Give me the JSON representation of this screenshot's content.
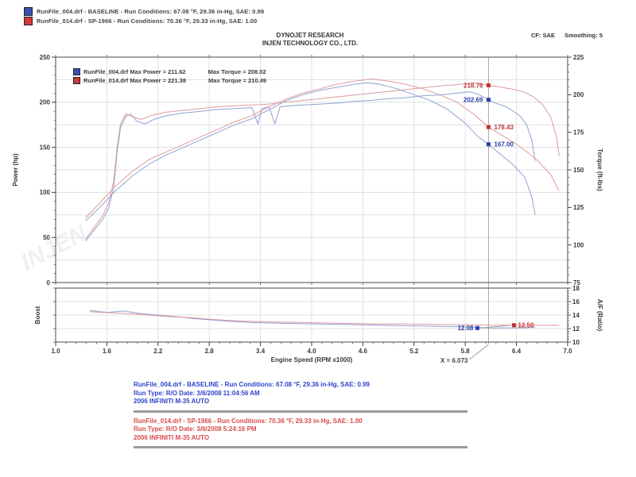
{
  "watermark": "INJEN",
  "colors": {
    "baseline": "#3a50b0",
    "sp": "#cf3a3a",
    "grid": "#e0e0e0",
    "frame": "#666666",
    "cursor": "#999999"
  },
  "header": {
    "runs": [
      {
        "swatch_color": "#3a50b0",
        "label": "RunFile_004.drf - BASELINE  -  Run Conditions: 67.08 °F, 29.36 in-Hg, SAE: 0.99"
      },
      {
        "swatch_color": "#cf3a3a",
        "label": "RunFile_014.drf - SP-1966  -  Run Conditions: 70.36 °F, 29.33 in-Hg, SAE: 1.00"
      }
    ],
    "cf_label": "CF: SAE",
    "smoothing_label": "Smoothing: 5",
    "title1": "DYNOJET RESEARCH",
    "title2": "INJEN TECHNOLOGY CO., LTD."
  },
  "legend": {
    "rows": [
      {
        "swatch_color": "#3a50b0",
        "power_label": "RunFile_004.drf Max Power = 211.62",
        "torque_label": "Max Torque = 208.02"
      },
      {
        "swatch_color": "#cf3a3a",
        "power_label": "RunFile_014.drf Max Power = 221.38",
        "torque_label": "Max Torque = 210.49"
      }
    ]
  },
  "footer": {
    "blocks": [
      {
        "color": "blue",
        "lines": [
          "RunFile_004.drf - BASELINE  -  Run Conditions: 67.08 °F, 29.36 in-Hg, SAE: 0.99",
          "Run Type: R/O Date: 3/6/2008 11:04:56 AM",
          "2006 INFINITI M-35 AUTO"
        ]
      },
      {
        "color": "red",
        "lines": [
          "RunFile_014.drf - SP-1966  -  Run Conditions: 70.36 °F, 29.33 in-Hg, SAE: 1.00",
          "Run Type: R/O Date: 3/6/2008 5:24:16 PM",
          "2006 INFINITI M-35 AUTO"
        ]
      }
    ]
  },
  "chart_data": [
    {
      "type": "line",
      "xlabel": "Engine Speed (RPM x1000)",
      "x_range": [
        1.0,
        7.0
      ],
      "x_ticks": [
        "1.0",
        "1.6",
        "2.2",
        "2.8",
        "3.4",
        "4.0",
        "4.6",
        "5.2",
        "5.8",
        "6.4",
        "7.0"
      ],
      "left_axis": {
        "label": "Power (hp)",
        "range": [
          0,
          250
        ],
        "ticks": [
          250,
          200,
          150,
          100,
          50,
          0
        ]
      },
      "right_axis": {
        "label": "Torque (ft-lbs)",
        "range": [
          75,
          225
        ],
        "ticks": [
          225,
          200,
          175,
          150,
          125,
          100,
          75
        ]
      },
      "grid": true,
      "cursor_x": 6.073,
      "cursor_label": "X = 6.073",
      "summary": {
        "baseline": {
          "max_power": 211.62,
          "max_torque": 208.02
        },
        "sp_1966": {
          "max_power": 221.38,
          "max_torque": 210.49
        }
      },
      "callouts": [
        {
          "text": "218.76",
          "value": 218.76,
          "axis": "left",
          "color": "#c03434",
          "label_side": "left"
        },
        {
          "text": "202.69",
          "value": 202.69,
          "axis": "left",
          "color": "#2b3fae",
          "label_side": "left"
        },
        {
          "text": "178.43",
          "value": 178.43,
          "axis": "right",
          "color": "#c03434",
          "label_side": "right"
        },
        {
          "text": "167.00",
          "value": 167.0,
          "axis": "right",
          "color": "#2b3fae",
          "label_side": "right"
        }
      ],
      "series": [
        {
          "id": "power-baseline",
          "name": "Power - RunFile_004.drf (BASELINE)",
          "axis": "left",
          "color": "#8fa2d4",
          "points": [
            [
              1.35,
              46
            ],
            [
              1.45,
              58
            ],
            [
              1.55,
              70
            ],
            [
              1.62,
              82
            ],
            [
              1.68,
              105
            ],
            [
              1.72,
              145
            ],
            [
              1.76,
              172
            ],
            [
              1.82,
              184
            ],
            [
              1.88,
              187
            ],
            [
              1.95,
              179
            ],
            [
              2.05,
              176
            ],
            [
              2.15,
              181
            ],
            [
              2.3,
              185
            ],
            [
              2.5,
              188
            ],
            [
              2.7,
              190
            ],
            [
              2.9,
              192
            ],
            [
              3.1,
              193
            ],
            [
              3.3,
              194
            ],
            [
              3.37,
              176
            ],
            [
              3.42,
              193
            ],
            [
              3.5,
              195
            ],
            [
              3.57,
              176
            ],
            [
              3.63,
              195
            ],
            [
              3.75,
              196
            ],
            [
              3.9,
              197
            ],
            [
              4.1,
              198
            ],
            [
              4.3,
              199
            ],
            [
              4.5,
              201
            ],
            [
              4.7,
              202
            ],
            [
              4.9,
              204
            ],
            [
              5.1,
              205
            ],
            [
              5.3,
              207
            ],
            [
              5.5,
              208
            ],
            [
              5.7,
              210
            ],
            [
              5.85,
              211.6
            ],
            [
              5.95,
              209
            ],
            [
              6.073,
              202.7
            ],
            [
              6.15,
              199
            ],
            [
              6.25,
              196
            ],
            [
              6.35,
              191
            ],
            [
              6.45,
              184
            ],
            [
              6.52,
              175
            ],
            [
              6.58,
              158
            ],
            [
              6.62,
              135
            ]
          ]
        },
        {
          "id": "power-sp1966",
          "name": "Power - RunFile_014.drf (SP-1966)",
          "axis": "left",
          "color": "#dd9a9a",
          "points": [
            [
              1.35,
              48
            ],
            [
              1.45,
              61
            ],
            [
              1.55,
              74
            ],
            [
              1.62,
              88
            ],
            [
              1.68,
              112
            ],
            [
              1.72,
              150
            ],
            [
              1.76,
              176
            ],
            [
              1.82,
              187
            ],
            [
              1.9,
              184
            ],
            [
              2.0,
              181
            ],
            [
              2.15,
              186
            ],
            [
              2.3,
              189
            ],
            [
              2.5,
              191
            ],
            [
              2.7,
              193
            ],
            [
              2.9,
              195
            ],
            [
              3.1,
              196
            ],
            [
              3.3,
              197
            ],
            [
              3.5,
              198
            ],
            [
              3.7,
              200
            ],
            [
              3.9,
              202
            ],
            [
              4.1,
              204
            ],
            [
              4.3,
              206
            ],
            [
              4.5,
              208
            ],
            [
              4.7,
              210
            ],
            [
              4.9,
              212
            ],
            [
              5.1,
              214
            ],
            [
              5.3,
              216
            ],
            [
              5.5,
              218
            ],
            [
              5.7,
              219.5
            ],
            [
              5.9,
              221.4
            ],
            [
              6.0,
              220
            ],
            [
              6.073,
              218.8
            ],
            [
              6.2,
              217
            ],
            [
              6.35,
              214.5
            ],
            [
              6.5,
              211
            ],
            [
              6.6,
              206
            ],
            [
              6.7,
              198
            ],
            [
              6.8,
              184
            ],
            [
              6.87,
              162
            ],
            [
              6.9,
              140
            ]
          ]
        },
        {
          "id": "torque-baseline",
          "name": "Torque - RunFile_004.drf (BASELINE)",
          "axis": "right",
          "color": "#8fa2d4",
          "points": [
            [
              1.35,
              116
            ],
            [
              1.5,
              124
            ],
            [
              1.7,
              136
            ],
            [
              1.9,
              146
            ],
            [
              2.1,
              154
            ],
            [
              2.3,
              160
            ],
            [
              2.5,
              165
            ],
            [
              2.7,
              170
            ],
            [
              2.9,
              175
            ],
            [
              3.1,
              180
            ],
            [
              3.3,
              184
            ],
            [
              3.5,
              190
            ],
            [
              3.7,
              196
            ],
            [
              3.9,
              200
            ],
            [
              4.1,
              203
            ],
            [
              4.3,
              205
            ],
            [
              4.5,
              207
            ],
            [
              4.65,
              208
            ],
            [
              4.8,
              207
            ],
            [
              5.0,
              204
            ],
            [
              5.2,
              200
            ],
            [
              5.4,
              196
            ],
            [
              5.6,
              190
            ],
            [
              5.8,
              181
            ],
            [
              5.95,
              172
            ],
            [
              6.073,
              167
            ],
            [
              6.2,
              161
            ],
            [
              6.35,
              154
            ],
            [
              6.5,
              145
            ],
            [
              6.58,
              132
            ],
            [
              6.62,
              120
            ]
          ]
        },
        {
          "id": "torque-sp1966",
          "name": "Torque - RunFile_014.drf (SP-1966)",
          "axis": "right",
          "color": "#dd9a9a",
          "points": [
            [
              1.35,
              118
            ],
            [
              1.5,
              127
            ],
            [
              1.7,
              139
            ],
            [
              1.9,
              149
            ],
            [
              2.1,
              157
            ],
            [
              2.3,
              162
            ],
            [
              2.5,
              167
            ],
            [
              2.7,
              172
            ],
            [
              2.9,
              177
            ],
            [
              3.1,
              182
            ],
            [
              3.3,
              186
            ],
            [
              3.5,
              192
            ],
            [
              3.7,
              197
            ],
            [
              3.9,
              201
            ],
            [
              4.1,
              204
            ],
            [
              4.3,
              207
            ],
            [
              4.5,
              209
            ],
            [
              4.7,
              210.5
            ],
            [
              4.9,
              209
            ],
            [
              5.1,
              207
            ],
            [
              5.3,
              204
            ],
            [
              5.5,
              200
            ],
            [
              5.7,
              195
            ],
            [
              5.9,
              187
            ],
            [
              6.0,
              182
            ],
            [
              6.073,
              178.4
            ],
            [
              6.2,
              174
            ],
            [
              6.35,
              169
            ],
            [
              6.5,
              163
            ],
            [
              6.65,
              156
            ],
            [
              6.8,
              147
            ],
            [
              6.9,
              136
            ]
          ]
        }
      ]
    },
    {
      "type": "line",
      "left_label": "Boost",
      "right_axis": {
        "label": "A/F (Ratio)",
        "range": [
          10,
          18
        ],
        "ticks": [
          18,
          16,
          14,
          12,
          10
        ]
      },
      "grid": true,
      "callouts": [
        {
          "text": "12.08",
          "value": 12.08,
          "color": "#2b3fae",
          "label_side": "left"
        },
        {
          "text": "12.50",
          "value": 12.5,
          "color": "#c03434",
          "label_side": "right"
        }
      ],
      "series": [
        {
          "id": "afr-baseline",
          "name": "A/F Ratio - RunFile_004.drf (BASELINE)",
          "color": "#8fa2d4",
          "points": [
            [
              1.4,
              14.7
            ],
            [
              1.6,
              14.4
            ],
            [
              1.8,
              14.6
            ],
            [
              2.0,
              14.2
            ],
            [
              2.2,
              14.0
            ],
            [
              2.4,
              13.8
            ],
            [
              2.6,
              13.5
            ],
            [
              2.8,
              13.3
            ],
            [
              3.0,
              13.1
            ],
            [
              3.3,
              12.9
            ],
            [
              3.6,
              12.8
            ],
            [
              4.0,
              12.7
            ],
            [
              4.4,
              12.6
            ],
            [
              4.8,
              12.5
            ],
            [
              5.2,
              12.4
            ],
            [
              5.6,
              12.3
            ],
            [
              5.9,
              12.2
            ],
            [
              6.073,
              12.08
            ],
            [
              6.3,
              12.1
            ],
            [
              6.5,
              12.1
            ],
            [
              6.62,
              12.2
            ]
          ]
        },
        {
          "id": "afr-sp1966",
          "name": "A/F Ratio - RunFile_014.drf (SP-1966)",
          "color": "#dd9a9a",
          "points": [
            [
              1.4,
              14.5
            ],
            [
              1.7,
              14.3
            ],
            [
              2.0,
              14.1
            ],
            [
              2.3,
              13.8
            ],
            [
              2.6,
              13.6
            ],
            [
              2.9,
              13.3
            ],
            [
              3.2,
              13.1
            ],
            [
              3.5,
              13.0
            ],
            [
              3.9,
              12.9
            ],
            [
              4.3,
              12.8
            ],
            [
              4.7,
              12.7
            ],
            [
              5.1,
              12.7
            ],
            [
              5.5,
              12.6
            ],
            [
              5.9,
              12.55
            ],
            [
              6.073,
              12.5
            ],
            [
              6.3,
              12.5
            ],
            [
              6.6,
              12.5
            ],
            [
              6.9,
              12.5
            ]
          ]
        }
      ]
    }
  ]
}
